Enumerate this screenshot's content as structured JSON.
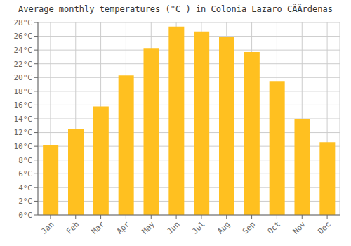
{
  "chart_data": {
    "type": "bar",
    "title": "Average monthly temperatures (°C ) in Colonia Lazaro CÃÃrdenas",
    "categories": [
      "Jan",
      "Feb",
      "Mar",
      "Apr",
      "May",
      "Jun",
      "Jul",
      "Aug",
      "Sep",
      "Oct",
      "Nov",
      "Dec"
    ],
    "values": [
      10.2,
      12.5,
      15.8,
      20.3,
      24.2,
      27.4,
      26.7,
      25.9,
      23.7,
      19.5,
      14.0,
      10.6
    ],
    "color": "#FFC020",
    "ylim": [
      0,
      28
    ],
    "yticks": [
      {
        "value": 0,
        "label": "0°C"
      },
      {
        "value": 2,
        "label": "2°C"
      },
      {
        "value": 4,
        "label": "4°C"
      },
      {
        "value": 6,
        "label": "6°C"
      },
      {
        "value": 8,
        "label": "8°C"
      },
      {
        "value": 10,
        "label": "10°C"
      },
      {
        "value": 12,
        "label": "12°C"
      },
      {
        "value": 14,
        "label": "14°C"
      },
      {
        "value": 16,
        "label": "16°C"
      },
      {
        "value": 18,
        "label": "18°C"
      },
      {
        "value": 20,
        "label": "20°C"
      },
      {
        "value": 22,
        "label": "22°C"
      },
      {
        "value": 24,
        "label": "24°C"
      },
      {
        "value": 26,
        "label": "26°C"
      },
      {
        "value": 28,
        "label": "28°C"
      }
    ],
    "grid": true
  }
}
